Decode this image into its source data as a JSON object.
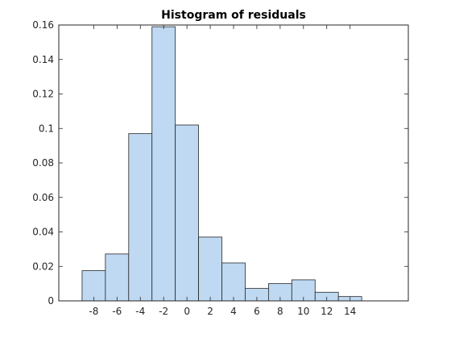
{
  "chart_data": {
    "type": "histogram",
    "title": "Histogram of residuals",
    "xlabel": "",
    "ylabel": "",
    "bin_edges": [
      -9,
      -7,
      -5,
      -3,
      -1,
      1,
      3,
      5,
      7,
      9,
      11,
      13,
      15
    ],
    "values": [
      0.0175,
      0.0272,
      0.097,
      0.159,
      0.102,
      0.037,
      0.022,
      0.0072,
      0.01,
      0.0122,
      0.005,
      0.0025
    ],
    "xlim": [
      -11,
      19
    ],
    "ylim": [
      0,
      0.16
    ],
    "x_ticks": [
      -8,
      -6,
      -4,
      -2,
      0,
      2,
      4,
      6,
      8,
      10,
      12,
      14
    ],
    "x_tick_labels": [
      "-8",
      "-6",
      "-4",
      "-2",
      "0",
      "2",
      "4",
      "6",
      "8",
      "10",
      "12",
      "14"
    ],
    "y_ticks": [
      0,
      0.02,
      0.04,
      0.06,
      0.08,
      0.1,
      0.12,
      0.14,
      0.16
    ],
    "y_tick_labels": [
      "0",
      "0.02",
      "0.04",
      "0.06",
      "0.08",
      "0.1",
      "0.12",
      "0.14",
      "0.16"
    ],
    "grid": false,
    "bar_fill_color": "#bfd9f2",
    "bar_edge_color": "#262626",
    "axis_color": "#262626"
  }
}
